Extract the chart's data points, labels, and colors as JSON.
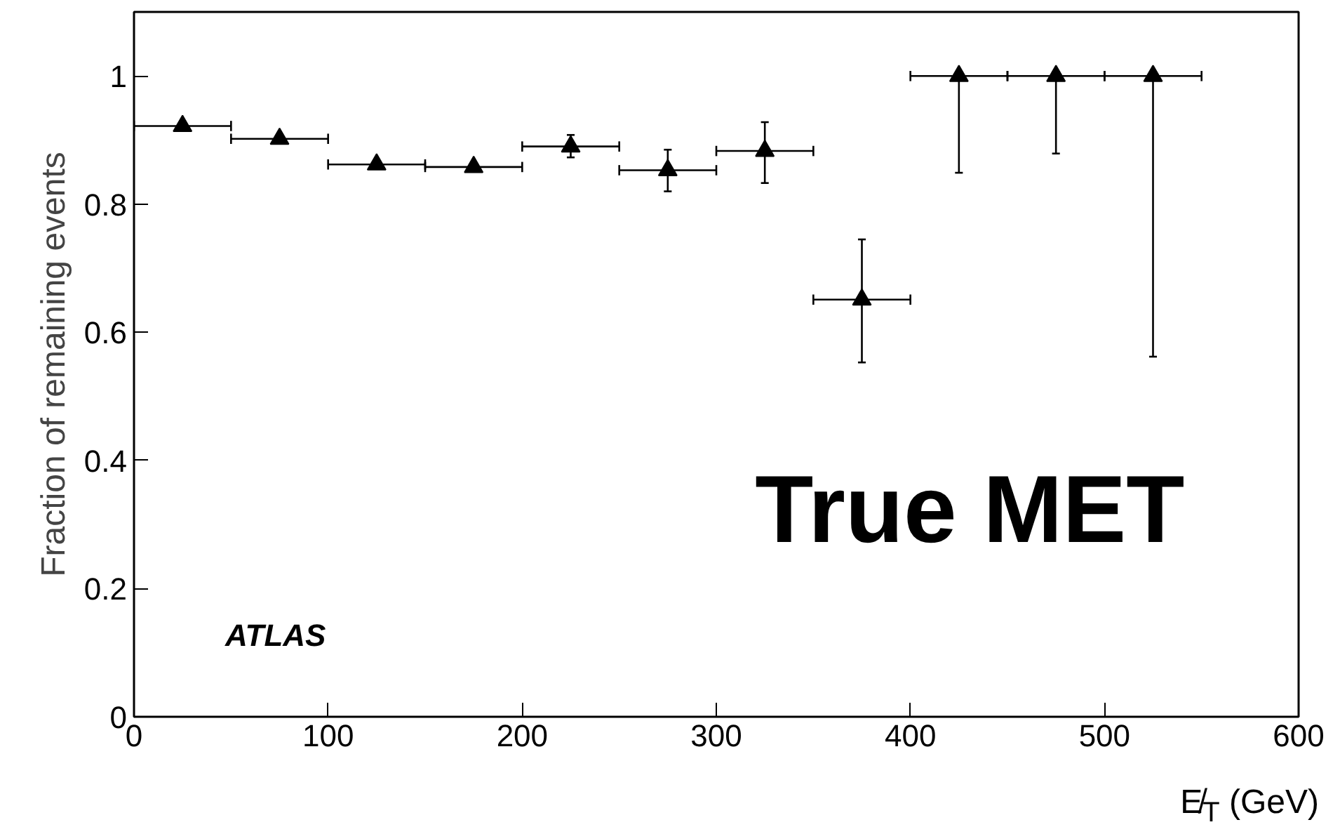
{
  "chart_data": {
    "type": "scatter",
    "xlabel": "E̸$_{T}$ (GeV)",
    "ylabel": "Fraction of remaining events",
    "annotations": [
      "True MET",
      "ATLAS"
    ],
    "x": [
      25,
      75,
      125,
      175,
      225,
      275,
      325,
      375,
      425,
      475,
      525
    ],
    "values": [
      0.922,
      0.902,
      0.862,
      0.858,
      0.89,
      0.853,
      0.883,
      0.651,
      1,
      1,
      1
    ],
    "errors": [
      null,
      null,
      null,
      null,
      [
        0.873,
        0.908
      ],
      [
        0.82,
        0.885
      ],
      [
        0.833,
        0.928
      ],
      [
        0.553,
        0.745
      ],
      [
        0.849,
        1
      ],
      [
        0.879,
        1
      ],
      [
        0.562,
        1
      ]
    ],
    "xerrors": [
      25,
      25,
      25,
      25,
      25,
      25,
      25,
      25,
      25,
      25,
      25
    ],
    "color": "#000000",
    "marker": "triangle",
    "grid": false,
    "legend": false,
    "xlim": [
      0,
      600
    ],
    "ylim": [
      0,
      1.1
    ],
    "xticks": [
      0,
      100,
      200,
      300,
      400,
      500,
      600
    ],
    "yticks": [
      0,
      0.2,
      0.4,
      0.6,
      0.8,
      1
    ]
  }
}
